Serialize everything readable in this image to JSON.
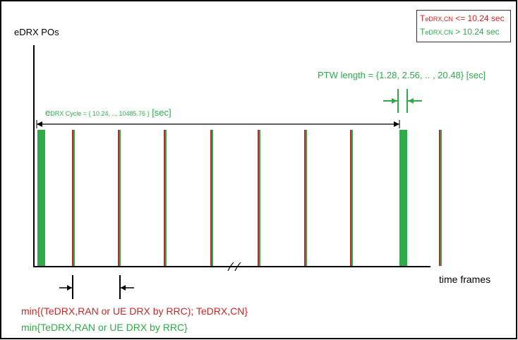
{
  "colors": {
    "red": "#c62828",
    "green": "#2eaa4a",
    "axis": "#000000",
    "frame": "#000000"
  },
  "legend": {
    "red_main": "T",
    "red_sub": "eDRX,CN",
    "red_rest": " <= 10.24 sec",
    "green_main": "T",
    "green_sub": "eDRX,CN",
    "green_rest": " > 10.24 sec"
  },
  "axes": {
    "y_label": "eDRX POs",
    "x_label": "time frames"
  },
  "ptw": {
    "label": "PTW length = {1.28, 2.56, .. , 20.48} [sec]"
  },
  "cycle": {
    "prefix": "e",
    "sub": "DRX Cycle = { 10.24, .., 10485.76 }",
    "suffix": " [sec]"
  },
  "min_formulas": {
    "red": "min{(TeDRX,RAN or UE DRX by RRC); TeDRX,CN}",
    "green": "min{TeDRX,RAN or UE DRX by RRC}"
  },
  "diagram": {
    "bars": [
      {
        "kind": "wide-green"
      },
      {
        "kind": "pair"
      },
      {
        "kind": "pair"
      },
      {
        "kind": "pair"
      },
      {
        "kind": "pair"
      },
      {
        "kind": "pair"
      },
      {
        "kind": "pair"
      },
      {
        "kind": "pair"
      },
      {
        "kind": "wide-green"
      },
      {
        "kind": "pair"
      }
    ]
  }
}
